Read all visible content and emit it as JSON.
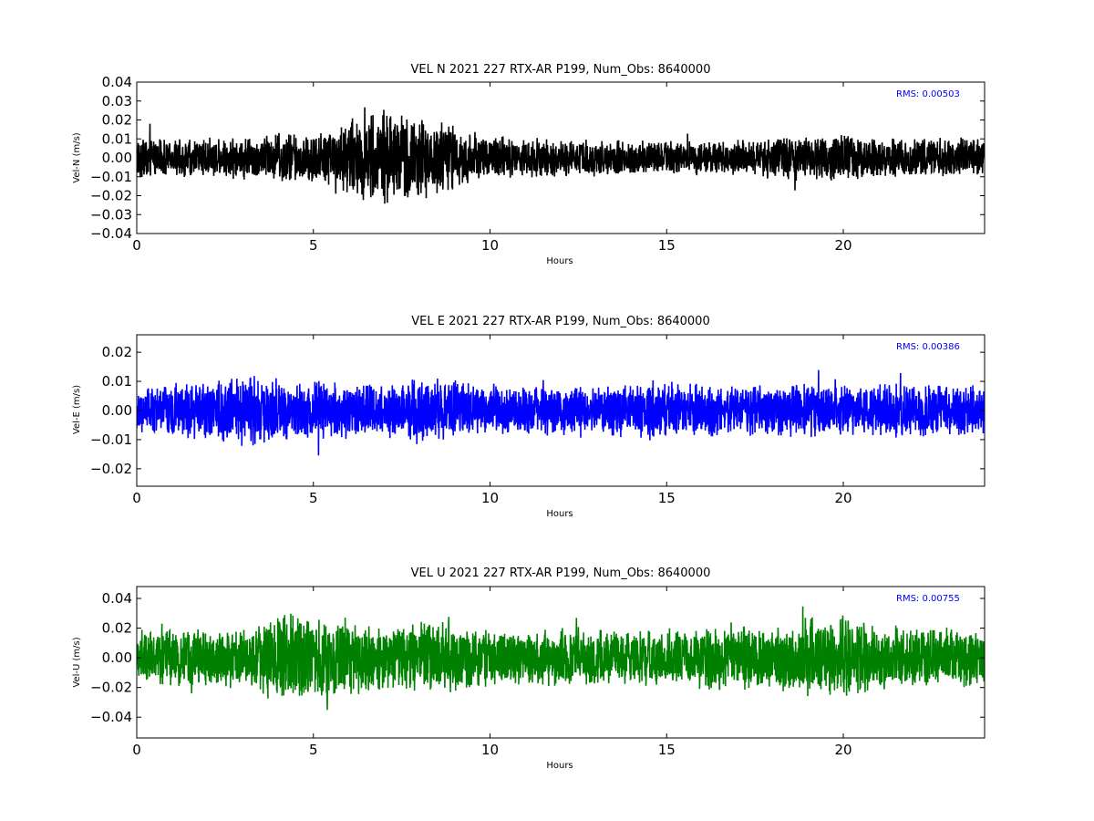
{
  "chart_data": [
    {
      "type": "line",
      "title": "VEL N 2021 227 RTX-AR  P199, Num_Obs: 8640000",
      "xlabel": "Hours",
      "ylabel": "Vel-N (m/s)",
      "xlim": [
        0,
        24
      ],
      "ylim": [
        -0.04,
        0.04
      ],
      "xticks": [
        0,
        5,
        10,
        15,
        20
      ],
      "xtick_labels": [
        "0",
        "5",
        "10",
        "15",
        "20"
      ],
      "yticks": [
        -0.04,
        -0.03,
        -0.02,
        -0.01,
        0.0,
        0.01,
        0.02,
        0.03,
        0.04
      ],
      "ytick_labels": [
        "−0.04",
        "−0.03",
        "−0.02",
        "−0.01",
        "0.00",
        "0.01",
        "0.02",
        "0.03",
        "0.04"
      ],
      "grid": false,
      "annotation": "RMS:  0.00503",
      "rms": 0.00503,
      "color": "#000000",
      "series": [
        {
          "envelope_hours": [
            0,
            1,
            2,
            3,
            4,
            5,
            5.5,
            6,
            6.5,
            7,
            7.5,
            8,
            8.5,
            9,
            9.5,
            10,
            11,
            12,
            13,
            14,
            15,
            16,
            17,
            18,
            19,
            20,
            21,
            22,
            23,
            24
          ],
          "envelope_amplitude": [
            0.012,
            0.011,
            0.011,
            0.012,
            0.015,
            0.014,
            0.018,
            0.022,
            0.025,
            0.026,
            0.025,
            0.023,
            0.022,
            0.018,
            0.015,
            0.012,
            0.011,
            0.01,
            0.01,
            0.01,
            0.01,
            0.009,
            0.01,
            0.011,
            0.013,
            0.014,
            0.011,
            0.011,
            0.011,
            0.011
          ]
        }
      ]
    },
    {
      "type": "line",
      "title": "VEL E 2021 227 RTX-AR  P199, Num_Obs: 8640000",
      "xlabel": "Hours",
      "ylabel": "Vel-E (m/s)",
      "xlim": [
        0,
        24
      ],
      "ylim": [
        -0.026,
        0.026
      ],
      "xticks": [
        0,
        5,
        10,
        15,
        20
      ],
      "xtick_labels": [
        "0",
        "5",
        "10",
        "15",
        "20"
      ],
      "yticks": [
        -0.02,
        -0.01,
        0.0,
        0.01,
        0.02
      ],
      "ytick_labels": [
        "−0.02",
        "−0.01",
        "0.00",
        "0.01",
        "0.02"
      ],
      "grid": false,
      "annotation": "RMS:  0.00386",
      "rms": 0.00386,
      "color": "#0000ff",
      "series": [
        {
          "envelope_hours": [
            0,
            1,
            2,
            3,
            4,
            5,
            6,
            7,
            8,
            9,
            10,
            11,
            12,
            13,
            14,
            15,
            16,
            17,
            18,
            19,
            20,
            21,
            22,
            23,
            24
          ],
          "envelope_amplitude": [
            0.008,
            0.01,
            0.011,
            0.013,
            0.012,
            0.011,
            0.01,
            0.009,
            0.012,
            0.011,
            0.009,
            0.009,
            0.009,
            0.009,
            0.01,
            0.011,
            0.01,
            0.009,
            0.009,
            0.01,
            0.009,
            0.01,
            0.01,
            0.01,
            0.009
          ]
        }
      ]
    },
    {
      "type": "line",
      "title": "VEL U 2021 227 RTX-AR  P199, Num_Obs: 8640000",
      "xlabel": "Hours",
      "ylabel": "Vel-U (m/s)",
      "xlim": [
        0,
        24
      ],
      "ylim": [
        -0.054,
        0.048
      ],
      "xticks": [
        0,
        5,
        10,
        15,
        20
      ],
      "xtick_labels": [
        "0",
        "5",
        "10",
        "15",
        "20"
      ],
      "yticks": [
        -0.04,
        -0.02,
        0.0,
        0.02,
        0.04
      ],
      "ytick_labels": [
        "−0.04",
        "−0.02",
        "0.00",
        "0.02",
        "0.04"
      ],
      "grid": false,
      "annotation": "RMS:  0.00755",
      "rms": 0.00755,
      "color": "#008000",
      "series": [
        {
          "envelope_hours": [
            0,
            1,
            2,
            3,
            4,
            5,
            6,
            7,
            8,
            9,
            10,
            11,
            12,
            13,
            14,
            15,
            16,
            17,
            18,
            19,
            20,
            21,
            22,
            23,
            24
          ],
          "envelope_amplitude": [
            0.02,
            0.021,
            0.022,
            0.02,
            0.032,
            0.03,
            0.028,
            0.022,
            0.026,
            0.024,
            0.02,
            0.02,
            0.022,
            0.02,
            0.021,
            0.021,
            0.022,
            0.025,
            0.022,
            0.028,
            0.03,
            0.024,
            0.022,
            0.022,
            0.02
          ]
        }
      ]
    }
  ]
}
